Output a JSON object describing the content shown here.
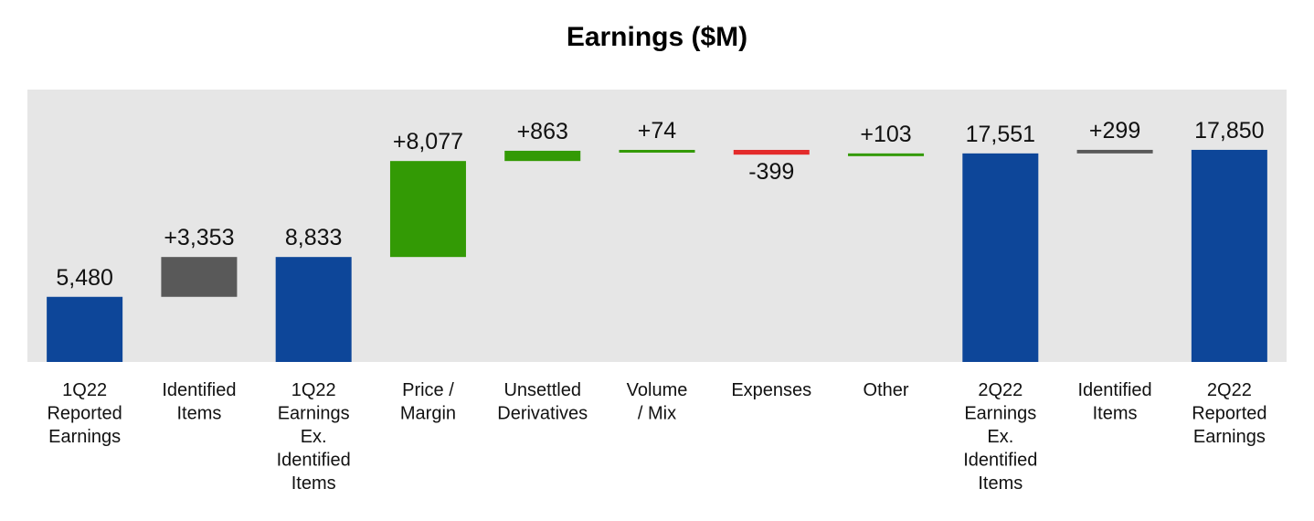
{
  "chart_data": {
    "type": "bar",
    "title": "Earnings ($M)",
    "categories": [
      "1Q22 Reported Earnings",
      "Identified Items",
      "1Q22 Earnings Ex. Identified Items",
      "Price / Margin",
      "Unsettled Derivatives",
      "Volume / Mix",
      "Expenses",
      "Other",
      "2Q22 Earnings Ex. Identified Items",
      "Identified Items",
      "2Q22 Reported Earnings"
    ],
    "category_lines": [
      [
        "1Q22",
        "Reported",
        "Earnings"
      ],
      [
        "Identified",
        "Items"
      ],
      [
        "1Q22",
        "Earnings",
        "Ex.",
        "Identified",
        "Items"
      ],
      [
        "Price /",
        "Margin"
      ],
      [
        "Unsettled",
        "Derivatives"
      ],
      [
        "Volume",
        "/ Mix"
      ],
      [
        "Expenses"
      ],
      [
        "Other"
      ],
      [
        "2Q22",
        "Earnings",
        "Ex.",
        "Identified",
        "Items"
      ],
      [
        "Identified",
        "Items"
      ],
      [
        "2Q22",
        "Reported",
        "Earnings"
      ]
    ],
    "values": [
      5480,
      3353,
      8833,
      8077,
      863,
      74,
      -399,
      103,
      17551,
      299,
      17850
    ],
    "kinds": [
      "total",
      "change",
      "total",
      "increase",
      "increase",
      "increase",
      "decrease",
      "increase",
      "total",
      "change",
      "total"
    ],
    "labels": [
      "5,480",
      "+3,353",
      "8,833",
      "+8,077",
      "+863",
      "+74",
      "-399",
      "+103",
      "17,551",
      "+299",
      "17,850"
    ],
    "xlabel": "",
    "ylabel": "",
    "ylim": [
      0,
      18000
    ],
    "grid": false,
    "legend": "none",
    "colors": {
      "total": "#0d4699",
      "change": "#595959",
      "increase": "#339a05",
      "decrease": "#e32b2b",
      "plot_background": "#e6e6e6"
    }
  }
}
